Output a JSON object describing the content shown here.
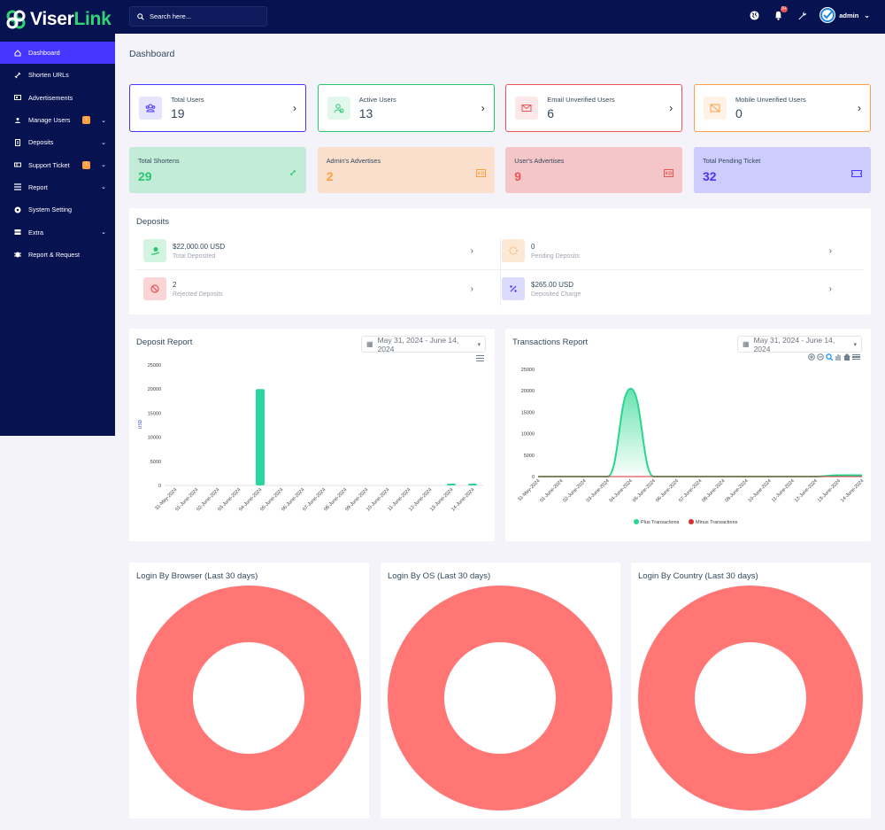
{
  "brand": {
    "name_part1": "Viser",
    "name_part2": "Link"
  },
  "sidebar": {
    "items": [
      {
        "label": "Dashboard",
        "icon": "home-icon",
        "active": true
      },
      {
        "label": "Shorten URLs",
        "icon": "link-icon"
      },
      {
        "label": "Advertisements",
        "icon": "ad-icon"
      },
      {
        "label": "Manage Users",
        "icon": "users-icon",
        "badge": "!",
        "chevron": true
      },
      {
        "label": "Deposits",
        "icon": "deposit-icon",
        "chevron": true
      },
      {
        "label": "Support Ticket",
        "icon": "ticket-icon",
        "badge": "!",
        "chevron": true
      },
      {
        "label": "Report",
        "icon": "list-icon",
        "chevron": true
      },
      {
        "label": "System Setting",
        "icon": "gear-icon"
      },
      {
        "label": "Extra",
        "icon": "server-icon",
        "chevron": true
      },
      {
        "label": "Report & Request",
        "icon": "bug-icon"
      }
    ]
  },
  "topbar": {
    "search_placeholder": "Search here...",
    "notification_badge": "9+",
    "username": "admin"
  },
  "page": {
    "title": "Dashboard"
  },
  "widgets_top": [
    {
      "label": "Total Users",
      "value": "19",
      "color": "#4634ff"
    },
    {
      "label": "Active Users",
      "value": "13",
      "color": "#28c76f"
    },
    {
      "label": "Email Unverified Users",
      "value": "6",
      "color": "#ea5455"
    },
    {
      "label": "Mobile Unverified Users",
      "value": "0",
      "color": "#ff9f43"
    }
  ],
  "widgets_mid": [
    {
      "label": "Total Shortens",
      "value": "29",
      "bg": "#c3ecd8",
      "color": "#28c76f"
    },
    {
      "label": "Admin's Advertises",
      "value": "2",
      "bg": "#f9dfcc",
      "color": "#ff9f43"
    },
    {
      "label": "User's Advertises",
      "value": "9",
      "bg": "#f4c6c7",
      "color": "#ea5455"
    },
    {
      "label": "Total Pending Ticket",
      "value": "32",
      "bg": "#cdccfd",
      "color": "#4634ff"
    }
  ],
  "deposits": {
    "title": "Deposits",
    "items": [
      {
        "value": "$22,000.00 USD",
        "label": "Total Deposited"
      },
      {
        "value": "0",
        "label": "Pending Deposits"
      },
      {
        "value": "2",
        "label": "Rejected Deposits"
      },
      {
        "value": "$265.00 USD",
        "label": "Deposited Charge"
      }
    ]
  },
  "deposit_report": {
    "title": "Deposit Report",
    "date_range": "May 31, 2024 - June 14, 2024"
  },
  "transactions_report": {
    "title": "Transactions Report",
    "date_range": "May 31, 2024 - June 14, 2024"
  },
  "donuts": [
    {
      "title": "Login By Browser (Last 30 days)"
    },
    {
      "title": "Login By OS (Last 30 days)"
    },
    {
      "title": "Login By Country (Last 30 days)"
    }
  ],
  "chart_data": [
    {
      "type": "bar",
      "categories": [
        "31-May-2024",
        "01-June-2024",
        "02-June-2024",
        "03-June-2024",
        "04-June-2024",
        "05-June-2024",
        "06-June-2024",
        "07-June-2024",
        "08-June-2024",
        "09-June-2024",
        "10-June-2024",
        "11-June-2024",
        "12-June-2024",
        "13-June-2024",
        "14-June-2024"
      ],
      "series": [
        {
          "values": [
            0,
            0,
            0,
            0,
            20000,
            0,
            0,
            0,
            0,
            0,
            0,
            0,
            0,
            200,
            200
          ]
        }
      ],
      "ylabel": "USD",
      "ylim": [
        0,
        25000
      ],
      "yticks": [
        0,
        5000,
        10000,
        15000,
        20000,
        25000
      ],
      "color": "#28d7a0"
    },
    {
      "type": "area",
      "categories": [
        "31-May-2024",
        "01-June-2024",
        "02-June-2024",
        "03-June-2024",
        "04-June-2024",
        "05-June-2024",
        "06-June-2024",
        "07-June-2024",
        "08-June-2024",
        "09-June-2024",
        "10-June-2024",
        "11-June-2024",
        "12-June-2024",
        "13-June-2024",
        "14-June-2024"
      ],
      "series": [
        {
          "name": "Plus Transactions",
          "values": [
            0,
            0,
            0,
            0,
            20500,
            0,
            0,
            0,
            0,
            0,
            0,
            0,
            0,
            300,
            300
          ],
          "color": "#28d78f"
        },
        {
          "name": "Minus Transactions",
          "values": [
            0,
            0,
            0,
            0,
            0,
            0,
            0,
            0,
            0,
            0,
            0,
            0,
            0,
            0,
            0
          ],
          "color": "#d63031"
        }
      ],
      "ylim": [
        0,
        25000
      ],
      "yticks": [
        0,
        5000,
        10000,
        15000,
        20000,
        25000
      ],
      "legend": "bottom"
    }
  ],
  "donut_color": "#ff7675"
}
